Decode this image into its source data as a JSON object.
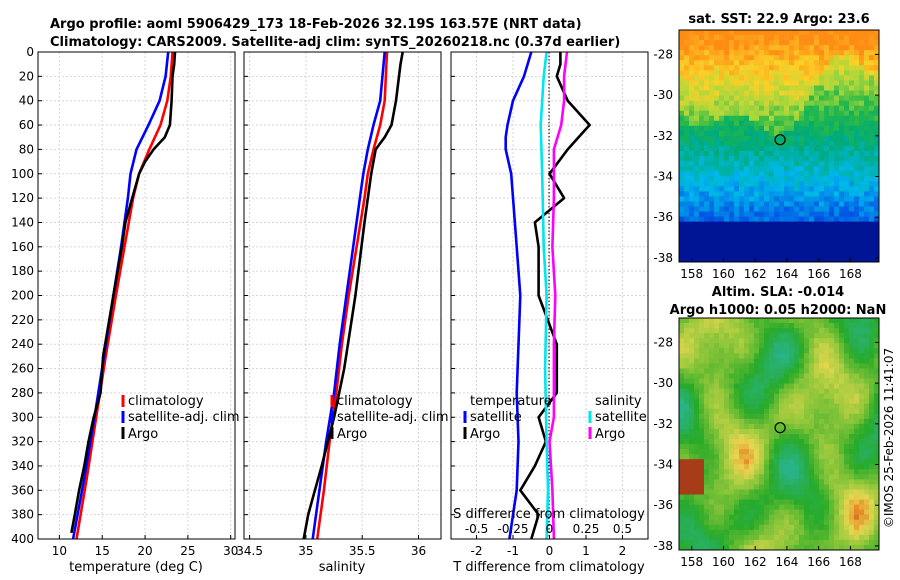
{
  "title_line1": "Argo profile: aoml 5906429_173 18-Feb-2026 32.19S 163.57E (NRT data)",
  "title_line2": "Climatology: CARS2009. Satellite-adj clim: synTS_20260218.nc (0.37d earlier)",
  "watermark": "©IMOS 25-Feb-2026 11:41:07",
  "colors": {
    "climatology": "#ff0000",
    "satellite": "#0000ff",
    "argo": "#000000",
    "sal_satellite": "#00e5ee",
    "sal_argo": "#ff00ff"
  },
  "chart_data": [
    {
      "type": "line",
      "name": "temperature",
      "xlabel": "temperature (deg C)",
      "ylabel": "",
      "xlim": [
        7.5,
        30.5
      ],
      "ylim": [
        400,
        0
      ],
      "xticks": [
        10,
        15,
        20,
        25,
        30
      ],
      "yticks": [
        0,
        20,
        40,
        60,
        80,
        100,
        120,
        140,
        160,
        180,
        200,
        220,
        240,
        260,
        280,
        300,
        320,
        340,
        360,
        380,
        400
      ],
      "legend": [
        "climatology",
        "satellite-adj. clim",
        "Argo"
      ],
      "series": [
        {
          "name": "climatology",
          "depth": [
            0,
            20,
            40,
            60,
            80,
            100,
            120,
            140,
            160,
            200,
            250,
            300,
            350,
            400
          ],
          "values": [
            23.2,
            23.0,
            22.6,
            21.8,
            20.5,
            19.3,
            18.6,
            18.1,
            17.6,
            16.6,
            15.4,
            14.3,
            13.2,
            12.0
          ]
        },
        {
          "name": "satellite-adj. clim",
          "depth": [
            0,
            20,
            40,
            60,
            80,
            100,
            120,
            140,
            160,
            200,
            250,
            300,
            350,
            400
          ],
          "values": [
            22.7,
            22.4,
            21.7,
            20.4,
            19.0,
            18.3,
            18.0,
            17.6,
            17.2,
            16.3,
            15.2,
            14.1,
            12.9,
            11.6
          ]
        },
        {
          "name": "Argo",
          "depth": [
            0,
            10,
            20,
            40,
            60,
            70,
            80,
            90,
            100,
            120,
            140,
            160,
            200,
            250,
            280,
            300,
            320,
            340,
            360,
            380,
            395
          ],
          "values": [
            23.5,
            23.4,
            23.2,
            23.1,
            22.9,
            22.3,
            21.0,
            20.0,
            19.3,
            18.5,
            17.7,
            17.3,
            16.3,
            15.1,
            14.8,
            14.0,
            13.4,
            12.9,
            12.3,
            11.8,
            11.4
          ]
        }
      ]
    },
    {
      "type": "line",
      "name": "salinity",
      "xlabel": "salinity",
      "ylabel": "",
      "xlim": [
        34.45,
        36.2
      ],
      "ylim": [
        400,
        0
      ],
      "xticks": [
        34.5,
        35,
        35.5,
        36
      ],
      "xticklabels": [
        "34.5",
        "35",
        "35.5",
        "36"
      ],
      "legend": [
        "climatology",
        "satellite-adj. clim",
        "Argo"
      ],
      "series": [
        {
          "name": "climatology",
          "depth": [
            0,
            40,
            60,
            80,
            100,
            120,
            160,
            200,
            240,
            280,
            320,
            360,
            400
          ],
          "values": [
            35.72,
            35.7,
            35.66,
            35.6,
            35.55,
            35.52,
            35.45,
            35.38,
            35.32,
            35.27,
            35.21,
            35.16,
            35.1
          ]
        },
        {
          "name": "satellite-adj. clim",
          "depth": [
            0,
            40,
            60,
            80,
            100,
            120,
            160,
            200,
            240,
            280,
            320,
            360,
            400
          ],
          "values": [
            35.7,
            35.66,
            35.6,
            35.55,
            35.51,
            35.48,
            35.42,
            35.36,
            35.3,
            35.25,
            35.18,
            35.12,
            35.06
          ]
        },
        {
          "name": "Argo",
          "depth": [
            0,
            10,
            40,
            60,
            70,
            80,
            100,
            140,
            200,
            260,
            300,
            340,
            360,
            380,
            400
          ],
          "values": [
            35.86,
            35.84,
            35.8,
            35.76,
            35.7,
            35.62,
            35.58,
            35.52,
            35.44,
            35.34,
            35.25,
            35.14,
            35.08,
            35.02,
            34.98
          ]
        }
      ]
    },
    {
      "type": "line",
      "name": "difference",
      "xlabel": "T difference from climatology",
      "top_xlabel": "S difference from climatology",
      "xlim": [
        -2.7,
        2.7
      ],
      "ylim": [
        400,
        0
      ],
      "xticks": [
        -2,
        -1,
        0,
        1,
        2
      ],
      "top_xticks": [
        -0.5,
        -0.25,
        0,
        0.25,
        0.5
      ],
      "legend_temperature_title": "temperature",
      "legend_salinity_title": "salinity",
      "legend_temperature": [
        "satellite",
        "Argo"
      ],
      "legend_salinity": [
        "satellite",
        "Argo"
      ],
      "series": [
        {
          "name": "T satellite",
          "depth": [
            0,
            20,
            40,
            60,
            70,
            80,
            100,
            160,
            200,
            280,
            320,
            360,
            400
          ],
          "values": [
            -0.5,
            -0.7,
            -1.0,
            -1.15,
            -1.2,
            -1.2,
            -1.05,
            -0.9,
            -0.8,
            -0.9,
            -0.85,
            -0.9,
            -1.1
          ]
        },
        {
          "name": "T Argo",
          "depth": [
            0,
            10,
            20,
            40,
            60,
            80,
            100,
            120,
            140,
            160,
            200,
            240,
            280,
            300,
            320,
            340,
            360,
            380,
            400
          ],
          "values": [
            0.3,
            0.3,
            0.2,
            0.5,
            1.1,
            0.5,
            0.0,
            0.4,
            -0.4,
            -0.3,
            -0.3,
            0.2,
            0.2,
            -0.3,
            -0.1,
            -0.4,
            -0.8,
            -0.3,
            -0.5
          ]
        },
        {
          "name": "S satellite",
          "depth": [
            0,
            20,
            60,
            100,
            160,
            200,
            260,
            320,
            360,
            400
          ],
          "values": [
            -0.02,
            -0.04,
            -0.06,
            -0.05,
            -0.04,
            -0.02,
            -0.03,
            -0.02,
            -0.01,
            -0.02
          ]
        },
        {
          "name": "S Argo",
          "depth": [
            0,
            20,
            40,
            60,
            80,
            100,
            120,
            160,
            200,
            240,
            280,
            300,
            320,
            360,
            400
          ],
          "values": [
            0.12,
            0.1,
            0.1,
            0.08,
            0.03,
            0.03,
            0.03,
            0.02,
            0.04,
            0.03,
            0.03,
            0.03,
            0.0,
            0.02,
            0.03
          ]
        }
      ]
    },
    {
      "type": "heatmap",
      "name": "sst_map",
      "title": "sat. SST: 22.9 Argo: 23.6",
      "xticks": [
        158,
        160,
        162,
        164,
        166,
        168
      ],
      "yticks": [
        -28,
        -30,
        -32,
        -34,
        -36,
        -38
      ],
      "xlim": [
        157.2,
        169.8
      ],
      "ylim": [
        -38.2,
        -26.8
      ],
      "marker": {
        "lon": 163.57,
        "lat": -32.19
      }
    },
    {
      "type": "heatmap",
      "name": "sla_map",
      "title_line1": "Altim. SLA: -0.014",
      "title_line2": "Argo h1000: 0.05 h2000: NaN",
      "xticks": [
        158,
        160,
        162,
        164,
        166,
        168
      ],
      "yticks": [
        -28,
        -30,
        -32,
        -34,
        -36,
        -38
      ],
      "xlim": [
        157.2,
        169.8
      ],
      "ylim": [
        -38.2,
        -26.8
      ],
      "marker": {
        "lon": 163.57,
        "lat": -32.19
      }
    }
  ]
}
